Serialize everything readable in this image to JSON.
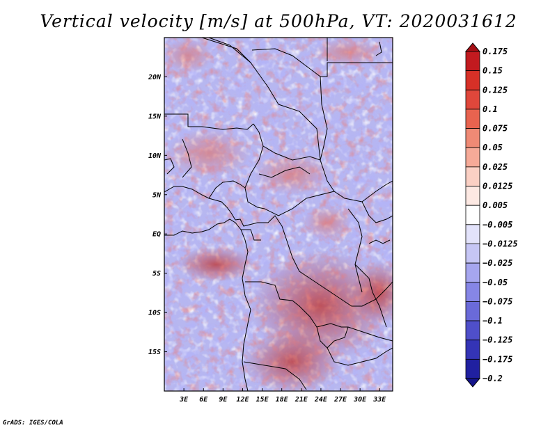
{
  "title": "Vertical velocity [m/s] at 500hPa, VT: 2020031612",
  "credit": "GrADS: IGES/COLA",
  "map": {
    "lat_range": [
      -20,
      25
    ],
    "lon_range": [
      0,
      35
    ],
    "lat_ticks": [
      "20N",
      "15N",
      "10N",
      "5N",
      "EQ",
      "5S",
      "10S",
      "15S"
    ],
    "lon_ticks": [
      "3E",
      "6E",
      "9E",
      "12E",
      "15E",
      "18E",
      "21E",
      "24E",
      "27E",
      "30E",
      "33E"
    ]
  },
  "colorbar": {
    "levels": [
      "0.175",
      "0.15",
      "0.125",
      "0.1",
      "0.075",
      "0.05",
      "0.025",
      "0.0125",
      "0.005",
      "−0.005",
      "−0.0125",
      "−0.025",
      "−0.05",
      "−0.075",
      "−0.1",
      "−0.125",
      "−0.175",
      "−0.2"
    ],
    "colors": [
      "#a50f15",
      "#c21a1f",
      "#d73027",
      "#e0473b",
      "#e8634f",
      "#ef8a75",
      "#f6aa98",
      "#fbd0c4",
      "#fde9e3",
      "#ffffff",
      "#e3e3fb",
      "#c6c6f5",
      "#a6a6ef",
      "#8686e6",
      "#6a6ad9",
      "#4f4fca",
      "#3434b6",
      "#2020a0",
      "#14148a"
    ]
  }
}
